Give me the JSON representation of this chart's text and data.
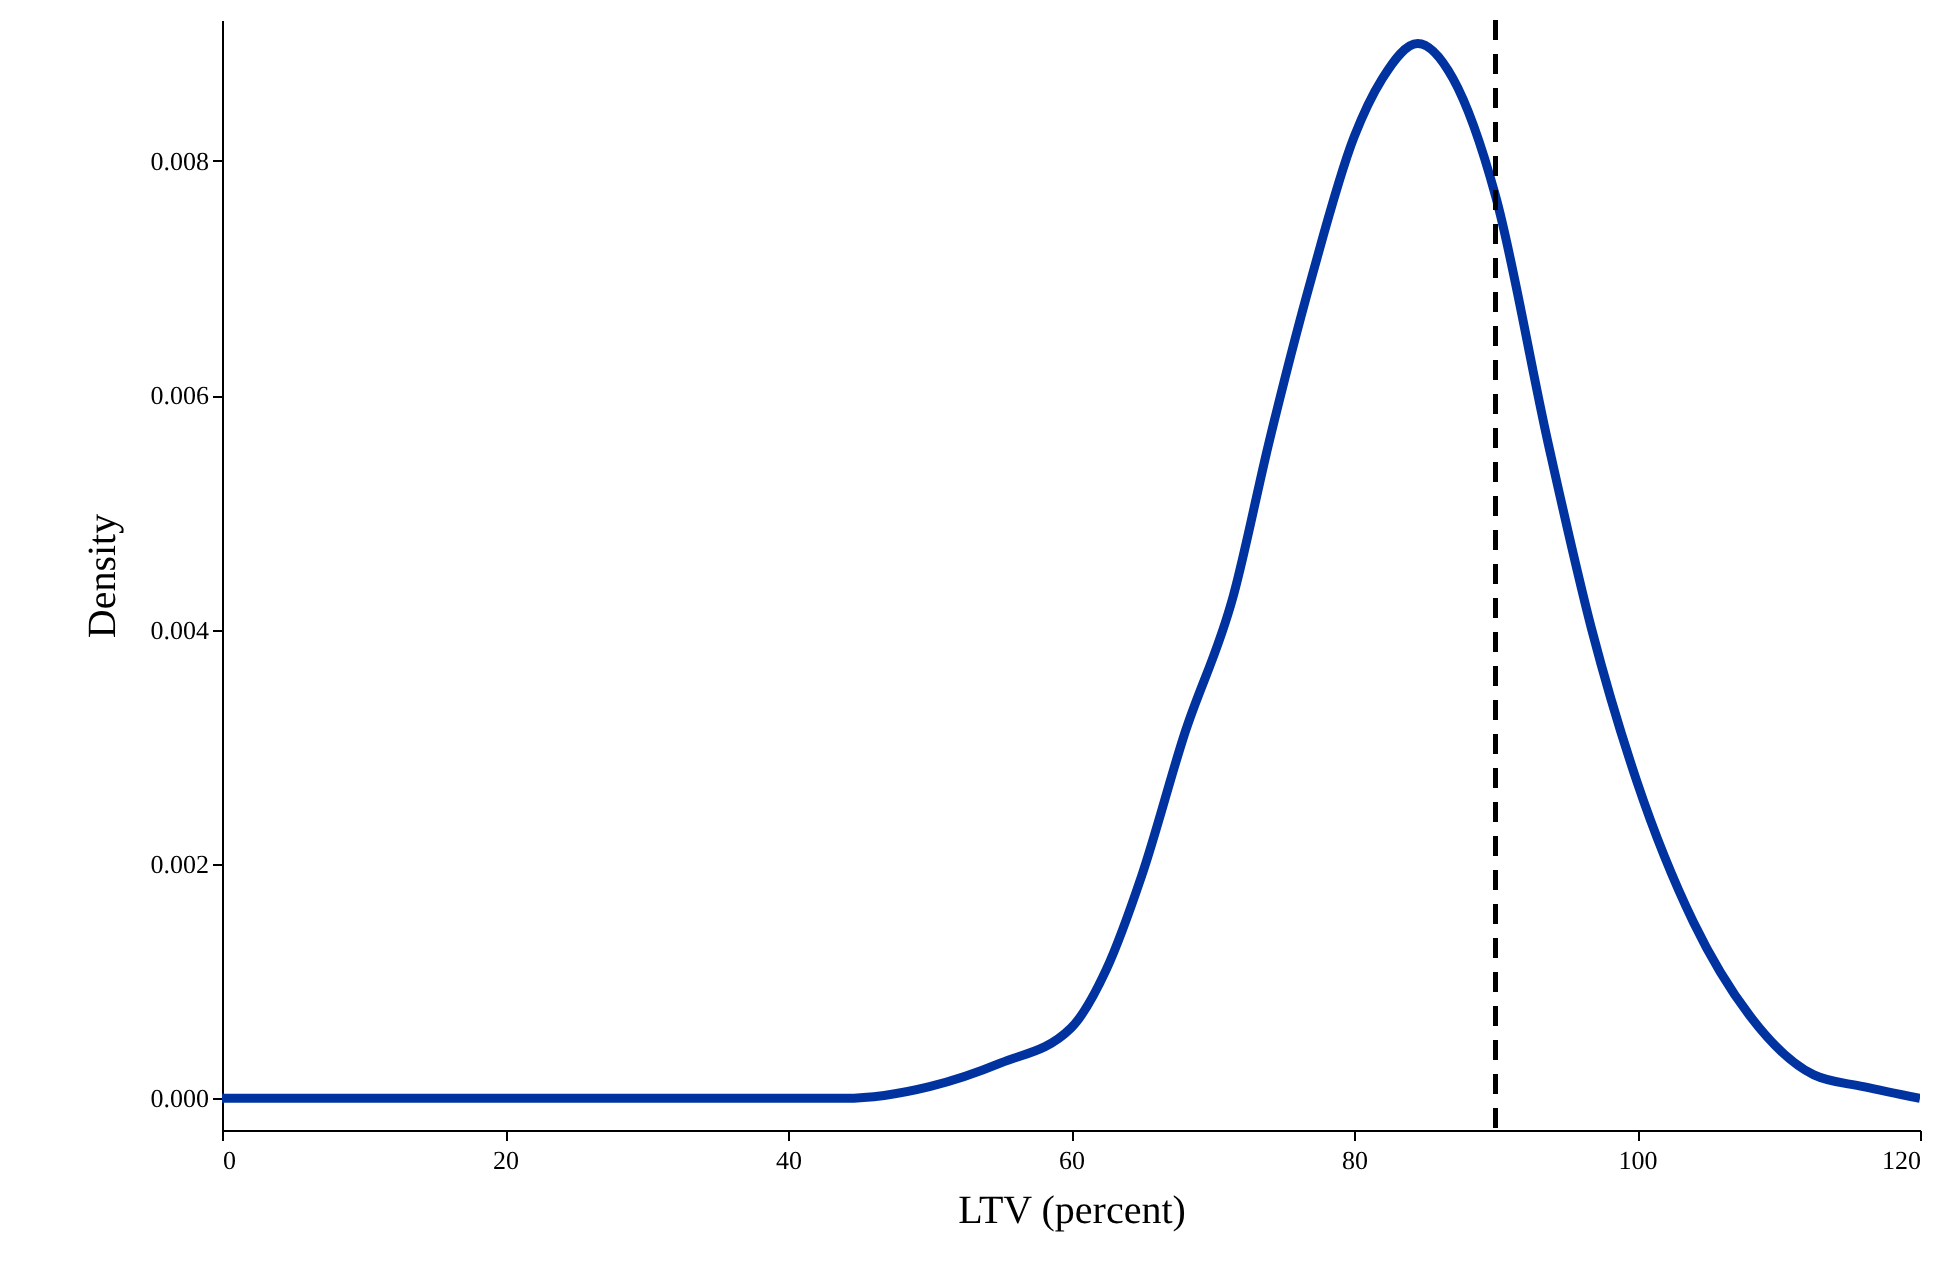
{
  "chart_data": {
    "type": "line",
    "xlabel": "LTV (percent)",
    "ylabel": "Density",
    "x": [
      0,
      5,
      10,
      20,
      30,
      40,
      44,
      50,
      55,
      60,
      62.5,
      65,
      68,
      71.5,
      74,
      77,
      80,
      82,
      84.5,
      87,
      90,
      93.7,
      96.8,
      100,
      104,
      108,
      112.5,
      116,
      120
    ],
    "series": [
      {
        "color": "#0033a0",
        "values": [
          0,
          0,
          0,
          0,
          0,
          0,
          0,
          0.0001,
          0.0003,
          0.0006,
          0.0011,
          0.0019,
          0.0031,
          0.0043,
          0.0056,
          0.007,
          0.0082,
          0.0087,
          0.009,
          0.0087,
          0.0077,
          0.0056,
          0.004,
          0.0027,
          0.0015,
          0.0007,
          0.0002,
          0.0001,
          0
        ]
      }
    ],
    "xlim": [
      0,
      120
    ],
    "xticks": [
      0,
      20,
      40,
      60,
      80,
      100,
      120
    ],
    "ylim": [
      -0.00027,
      0.0092
    ],
    "yticks": [
      {
        "value": 0,
        "label": "0.000"
      },
      {
        "value": 0.002,
        "label": "0.002"
      },
      {
        "value": 0.004,
        "label": "0.004"
      },
      {
        "value": 0.006,
        "label": "0.006"
      },
      {
        "value": 0.008,
        "label": "0.008"
      }
    ],
    "ref_lines": [
      {
        "axis": "x",
        "value": 90,
        "color": "#000000",
        "line_style": "dashed"
      }
    ],
    "grid": false,
    "marker": "none",
    "line_style": "solid"
  }
}
